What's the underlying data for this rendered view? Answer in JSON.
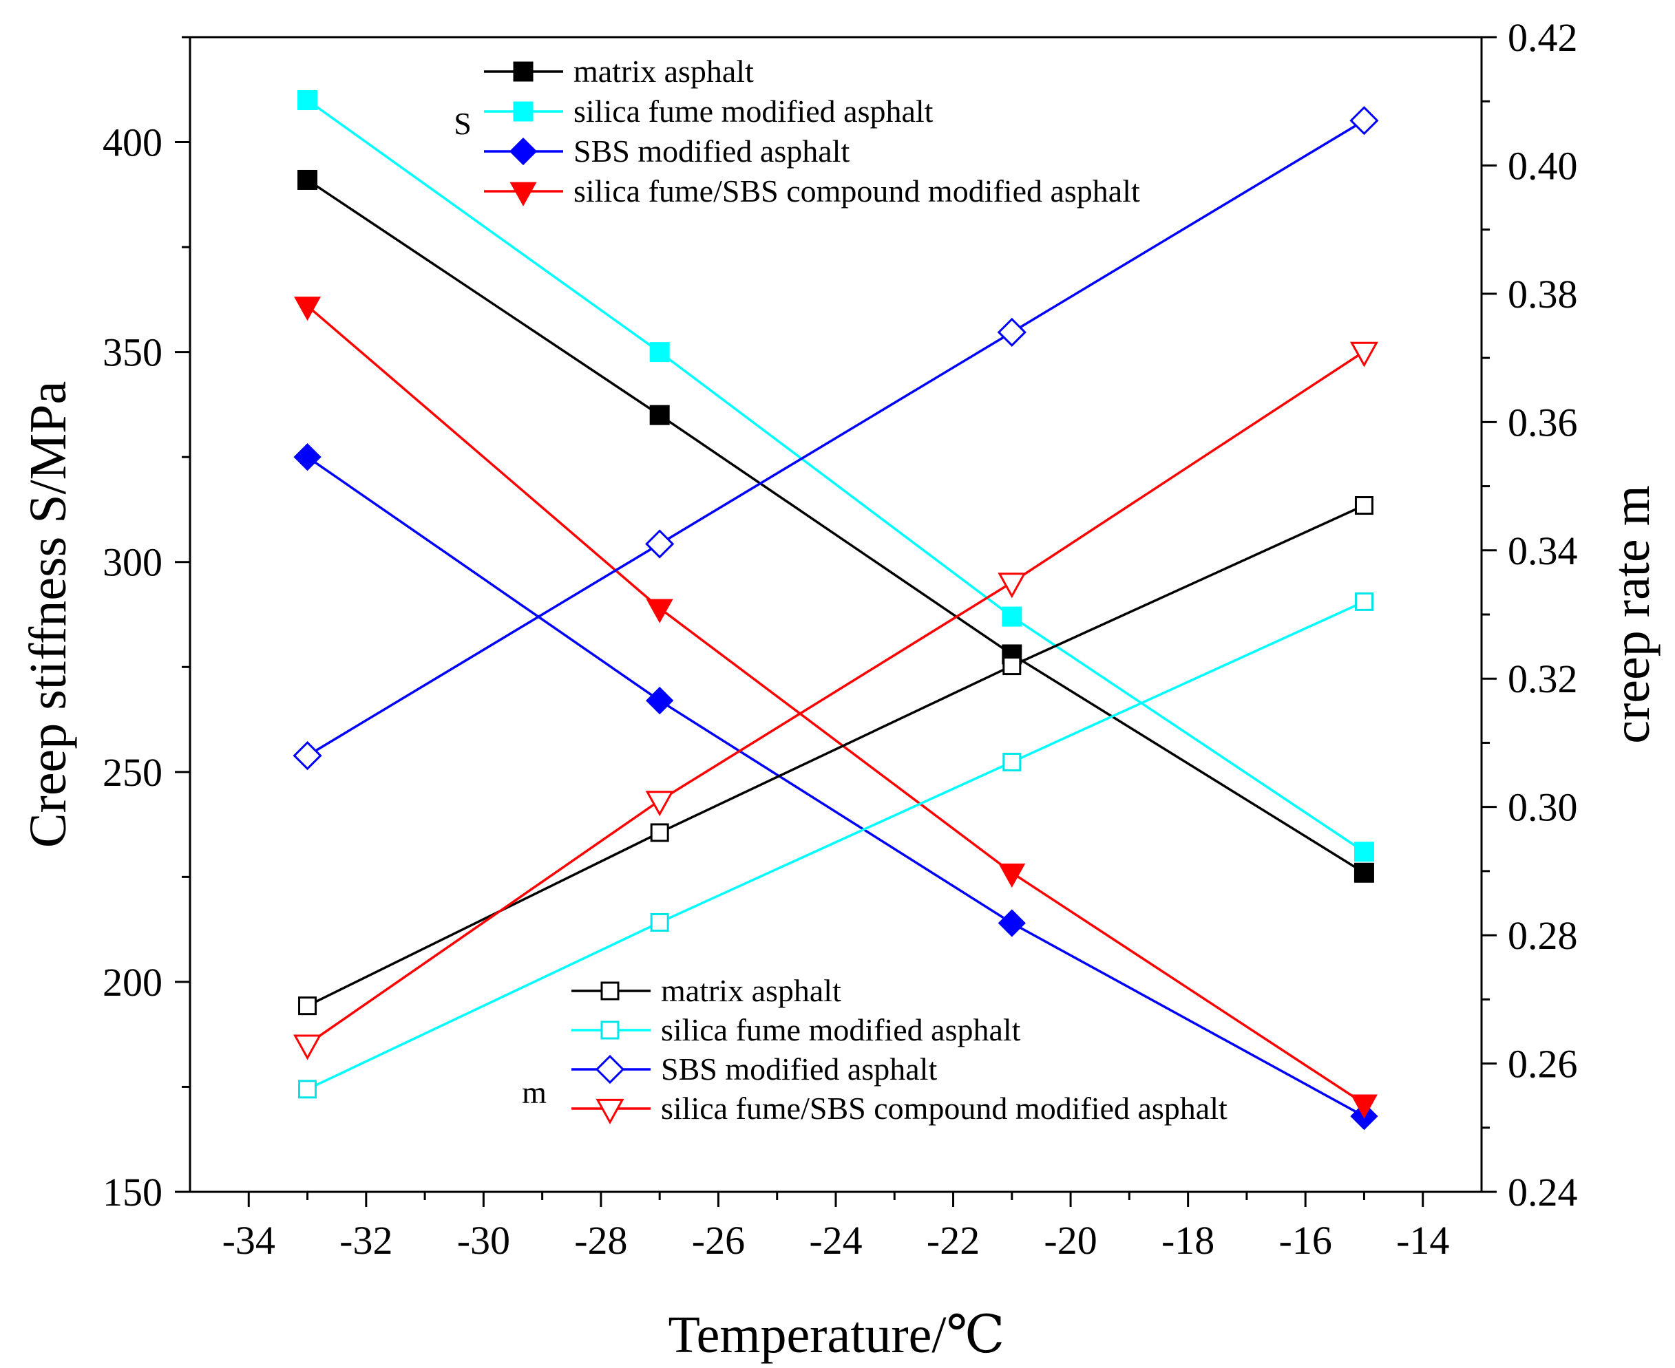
{
  "chart_data": {
    "type": "line",
    "dual_axis": true,
    "x": [
      -33,
      -27,
      -21,
      -15
    ],
    "xlabel": "Temperature/℃",
    "xlim": [
      -35,
      -13
    ],
    "xticks": [
      -34,
      -32,
      -30,
      -28,
      -26,
      -24,
      -22,
      -20,
      -18,
      -16,
      -14
    ],
    "ylabel_left": "Creep stiffness S/MPa",
    "ylim_left": [
      150,
      425
    ],
    "yticks_left": [
      150,
      200,
      250,
      300,
      350,
      400
    ],
    "ylabel_right": "creep rate m",
    "ylim_right": [
      0.24,
      0.42
    ],
    "yticks_right": [
      "0.24",
      "0.26",
      "0.28",
      "0.30",
      "0.32",
      "0.34",
      "0.36",
      "0.38",
      "0.40",
      "0.42"
    ],
    "legend_S_tag": "S",
    "legend_m_tag": "m",
    "series": [
      {
        "name": "matrix asphalt",
        "group": "S",
        "axis": "left",
        "color": "#000000",
        "marker": "square",
        "filled": true,
        "values": [
          391,
          335,
          278,
          226
        ]
      },
      {
        "name": "silica fume modified asphalt",
        "group": "S",
        "axis": "left",
        "color": "#00ffff",
        "marker": "square",
        "filled": true,
        "values": [
          410,
          350,
          287,
          231
        ]
      },
      {
        "name": "SBS modified asphalt",
        "group": "S",
        "axis": "left",
        "color": "#0000ff",
        "marker": "diamond",
        "filled": true,
        "values": [
          325,
          267,
          214,
          168
        ]
      },
      {
        "name": "silica fume/SBS compound modified asphalt",
        "group": "S",
        "axis": "left",
        "color": "#ff0000",
        "marker": "triangle-down",
        "filled": true,
        "values": [
          361,
          289,
          226,
          171
        ]
      },
      {
        "name": "matrix asphalt",
        "group": "m",
        "axis": "right",
        "color": "#000000",
        "marker": "square",
        "filled": false,
        "values": [
          0.269,
          0.296,
          0.322,
          0.347
        ]
      },
      {
        "name": "silica fume modified asphalt",
        "group": "m",
        "axis": "right",
        "color": "#00ffff",
        "marker": "square",
        "filled": false,
        "values": [
          0.256,
          0.282,
          0.307,
          0.332
        ]
      },
      {
        "name": "SBS modified asphalt",
        "group": "m",
        "axis": "right",
        "color": "#0000ff",
        "marker": "diamond",
        "filled": false,
        "values": [
          0.308,
          0.341,
          0.374,
          0.407
        ]
      },
      {
        "name": "silica fume/SBS compound modified asphalt",
        "group": "m",
        "axis": "right",
        "color": "#ff0000",
        "marker": "triangle-down",
        "filled": false,
        "values": [
          0.263,
          0.301,
          0.335,
          0.371
        ]
      }
    ]
  }
}
